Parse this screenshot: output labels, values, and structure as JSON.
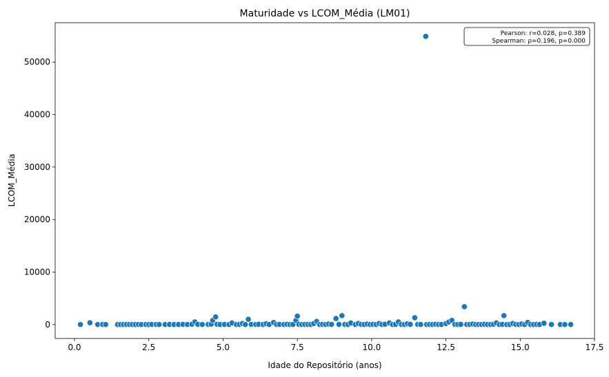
{
  "chart_data": {
    "type": "scatter",
    "title": "Maturidade vs LCOM_Média (LM01)",
    "xlabel": "Idade do Repositório (anos)",
    "ylabel": "LCOM_Média",
    "xlim": [
      -0.65,
      17.5
    ],
    "ylim": [
      -2650,
      57500
    ],
    "xticks": [
      0.0,
      2.5,
      5.0,
      7.5,
      10.0,
      12.5,
      15.0,
      17.5
    ],
    "xtick_labels": [
      "0.0",
      "2.5",
      "5.0",
      "7.5",
      "10.0",
      "12.5",
      "15.0",
      "17.5"
    ],
    "yticks": [
      0,
      10000,
      20000,
      30000,
      40000,
      50000
    ],
    "ytick_labels": [
      "0",
      "10000",
      "20000",
      "30000",
      "40000",
      "50000"
    ],
    "grid": false,
    "point_color": "#1f77b4",
    "annotation_lines": [
      "Pearson: r=0.028, p=0.389",
      "Spearman: ρ=0.196, p=0.000"
    ],
    "annotation_position": "top-right",
    "points": [
      {
        "x": 0.2,
        "y": 10
      },
      {
        "x": 0.52,
        "y": 350
      },
      {
        "x": 0.78,
        "y": 15
      },
      {
        "x": 0.95,
        "y": 20
      },
      {
        "x": 1.05,
        "y": 10
      },
      {
        "x": 1.45,
        "y": 5
      },
      {
        "x": 1.55,
        "y": 12
      },
      {
        "x": 1.65,
        "y": 8
      },
      {
        "x": 1.75,
        "y": 20
      },
      {
        "x": 1.85,
        "y": 10
      },
      {
        "x": 1.95,
        "y": 15
      },
      {
        "x": 2.05,
        "y": 5
      },
      {
        "x": 2.15,
        "y": 30
      },
      {
        "x": 2.25,
        "y": 10
      },
      {
        "x": 2.4,
        "y": 12
      },
      {
        "x": 2.5,
        "y": 8
      },
      {
        "x": 2.6,
        "y": 25
      },
      {
        "x": 2.75,
        "y": 10
      },
      {
        "x": 2.85,
        "y": 15
      },
      {
        "x": 3.05,
        "y": 12
      },
      {
        "x": 3.2,
        "y": 20
      },
      {
        "x": 3.35,
        "y": 8
      },
      {
        "x": 3.5,
        "y": 10
      },
      {
        "x": 3.65,
        "y": 30
      },
      {
        "x": 3.8,
        "y": 15
      },
      {
        "x": 3.95,
        "y": 60
      },
      {
        "x": 4.05,
        "y": 500
      },
      {
        "x": 4.15,
        "y": 40
      },
      {
        "x": 4.3,
        "y": 10
      },
      {
        "x": 4.5,
        "y": 25
      },
      {
        "x": 4.6,
        "y": 80
      },
      {
        "x": 4.65,
        "y": 800
      },
      {
        "x": 4.75,
        "y": 1450
      },
      {
        "x": 4.8,
        "y": 50
      },
      {
        "x": 4.9,
        "y": 15
      },
      {
        "x": 5.05,
        "y": 20
      },
      {
        "x": 5.2,
        "y": 10
      },
      {
        "x": 5.3,
        "y": 300
      },
      {
        "x": 5.45,
        "y": 15
      },
      {
        "x": 5.55,
        "y": 40
      },
      {
        "x": 5.65,
        "y": 200
      },
      {
        "x": 5.75,
        "y": 15
      },
      {
        "x": 5.85,
        "y": 1000
      },
      {
        "x": 5.95,
        "y": 25
      },
      {
        "x": 6.1,
        "y": 10
      },
      {
        "x": 6.2,
        "y": 50
      },
      {
        "x": 6.35,
        "y": 20
      },
      {
        "x": 6.45,
        "y": 150
      },
      {
        "x": 6.55,
        "y": 15
      },
      {
        "x": 6.7,
        "y": 400
      },
      {
        "x": 6.8,
        "y": 10
      },
      {
        "x": 6.9,
        "y": 30
      },
      {
        "x": 7.05,
        "y": 15
      },
      {
        "x": 7.15,
        "y": 60
      },
      {
        "x": 7.25,
        "y": 10
      },
      {
        "x": 7.35,
        "y": 20
      },
      {
        "x": 7.45,
        "y": 800
      },
      {
        "x": 7.5,
        "y": 1600
      },
      {
        "x": 7.55,
        "y": 50
      },
      {
        "x": 7.65,
        "y": 15
      },
      {
        "x": 7.75,
        "y": 30
      },
      {
        "x": 7.85,
        "y": 10
      },
      {
        "x": 7.95,
        "y": 20
      },
      {
        "x": 8.05,
        "y": 200
      },
      {
        "x": 8.15,
        "y": 600
      },
      {
        "x": 8.25,
        "y": 15
      },
      {
        "x": 8.35,
        "y": 40
      },
      {
        "x": 8.45,
        "y": 10
      },
      {
        "x": 8.55,
        "y": 100
      },
      {
        "x": 8.65,
        "y": 25
      },
      {
        "x": 8.8,
        "y": 1150
      },
      {
        "x": 8.9,
        "y": 40
      },
      {
        "x": 9.0,
        "y": 1700
      },
      {
        "x": 9.1,
        "y": 20
      },
      {
        "x": 9.2,
        "y": 10
      },
      {
        "x": 9.3,
        "y": 300
      },
      {
        "x": 9.45,
        "y": 15
      },
      {
        "x": 9.55,
        "y": 200
      },
      {
        "x": 9.65,
        "y": 30
      },
      {
        "x": 9.75,
        "y": 10
      },
      {
        "x": 9.85,
        "y": 100
      },
      {
        "x": 9.95,
        "y": 15
      },
      {
        "x": 10.05,
        "y": 40
      },
      {
        "x": 10.15,
        "y": 10
      },
      {
        "x": 10.25,
        "y": 200
      },
      {
        "x": 10.35,
        "y": 20
      },
      {
        "x": 10.45,
        "y": 60
      },
      {
        "x": 10.6,
        "y": 300
      },
      {
        "x": 10.7,
        "y": 15
      },
      {
        "x": 10.8,
        "y": 30
      },
      {
        "x": 10.9,
        "y": 500
      },
      {
        "x": 11.0,
        "y": 20
      },
      {
        "x": 11.1,
        "y": 10
      },
      {
        "x": 11.2,
        "y": 150
      },
      {
        "x": 11.3,
        "y": 40
      },
      {
        "x": 11.45,
        "y": 1300
      },
      {
        "x": 11.55,
        "y": 25
      },
      {
        "x": 11.65,
        "y": 10
      },
      {
        "x": 11.82,
        "y": 54900
      },
      {
        "x": 11.85,
        "y": 15
      },
      {
        "x": 11.95,
        "y": 30
      },
      {
        "x": 12.05,
        "y": 10
      },
      {
        "x": 12.15,
        "y": 60
      },
      {
        "x": 12.25,
        "y": 20
      },
      {
        "x": 12.35,
        "y": 10
      },
      {
        "x": 12.5,
        "y": 200
      },
      {
        "x": 12.6,
        "y": 500
      },
      {
        "x": 12.7,
        "y": 800
      },
      {
        "x": 12.8,
        "y": 30
      },
      {
        "x": 12.9,
        "y": 15
      },
      {
        "x": 13.0,
        "y": 40
      },
      {
        "x": 13.12,
        "y": 3400
      },
      {
        "x": 13.2,
        "y": 10
      },
      {
        "x": 13.3,
        "y": 20
      },
      {
        "x": 13.4,
        "y": 100
      },
      {
        "x": 13.5,
        "y": 15
      },
      {
        "x": 13.6,
        "y": 30
      },
      {
        "x": 13.7,
        "y": 10
      },
      {
        "x": 13.8,
        "y": 50
      },
      {
        "x": 13.9,
        "y": 20
      },
      {
        "x": 14.0,
        "y": 10
      },
      {
        "x": 14.1,
        "y": 60
      },
      {
        "x": 14.2,
        "y": 300
      },
      {
        "x": 14.3,
        "y": 15
      },
      {
        "x": 14.4,
        "y": 40
      },
      {
        "x": 14.45,
        "y": 1700
      },
      {
        "x": 14.55,
        "y": 10
      },
      {
        "x": 14.65,
        "y": 20
      },
      {
        "x": 14.75,
        "y": 200
      },
      {
        "x": 14.85,
        "y": 30
      },
      {
        "x": 14.95,
        "y": 10
      },
      {
        "x": 15.05,
        "y": 100
      },
      {
        "x": 15.15,
        "y": 15
      },
      {
        "x": 15.25,
        "y": 400
      },
      {
        "x": 15.35,
        "y": 20
      },
      {
        "x": 15.45,
        "y": 10
      },
      {
        "x": 15.55,
        "y": 40
      },
      {
        "x": 15.65,
        "y": 15
      },
      {
        "x": 15.8,
        "y": 250
      },
      {
        "x": 16.05,
        "y": 20
      },
      {
        "x": 16.35,
        "y": 10
      },
      {
        "x": 16.5,
        "y": 15
      },
      {
        "x": 16.7,
        "y": 10
      }
    ]
  }
}
